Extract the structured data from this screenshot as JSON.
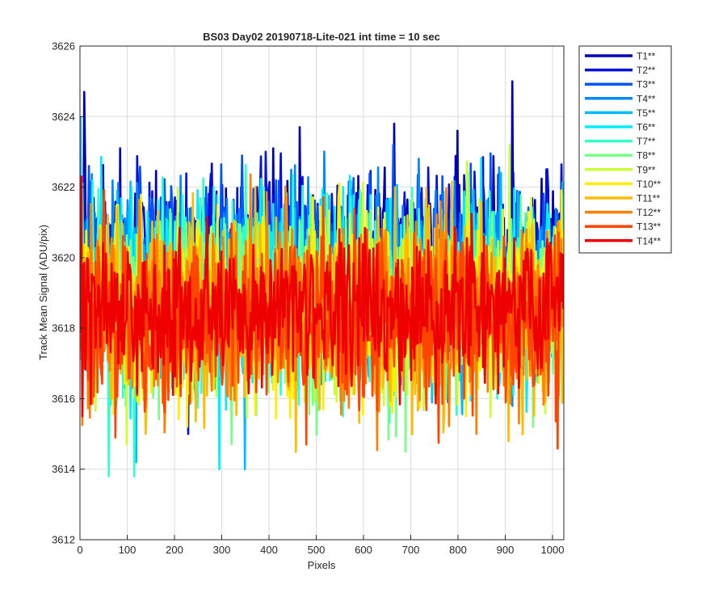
{
  "chart_data": {
    "type": "line",
    "title": "BS03 Day02 20190718-Lite-021 int time = 10 sec",
    "xlabel": "Pixels",
    "ylabel": "Track Mean Signal (ADU/pix)",
    "xlim": [
      0,
      1024
    ],
    "ylim": [
      3612,
      3626
    ],
    "x_ticks": [
      0,
      100,
      200,
      300,
      400,
      500,
      600,
      700,
      800,
      900,
      1000
    ],
    "y_ticks": [
      3612,
      3614,
      3616,
      3618,
      3620,
      3622,
      3624,
      3626
    ],
    "grid": true,
    "legend_position": "outside-top-right",
    "series": [
      {
        "name": "T1**",
        "color": "#0000b3",
        "mean": 3620.0,
        "spread": 1.4,
        "peaks": [
          [
            10,
            3624.7
          ],
          [
            85,
            3623.1
          ],
          [
            410,
            3623.1
          ],
          [
            465,
            3623.7
          ],
          [
            665,
            3623.8
          ],
          [
            800,
            3623.6
          ],
          [
            915,
            3625.0
          ]
        ]
      },
      {
        "name": "T2**",
        "color": "#0011dd",
        "mean": 3619.8,
        "spread": 1.5,
        "peaks": [
          [
            230,
            3615.0
          ],
          [
            780,
            3615.9
          ]
        ]
      },
      {
        "name": "T3**",
        "color": "#0055ff",
        "mean": 3619.6,
        "spread": 1.5,
        "peaks": [
          [
            20,
            3622.6
          ]
        ]
      },
      {
        "name": "T4**",
        "color": "#0088ff",
        "mean": 3619.4,
        "spread": 1.5,
        "peaks": [
          [
            580,
            3621.8
          ]
        ]
      },
      {
        "name": "T5**",
        "color": "#00bbff",
        "mean": 3619.2,
        "spread": 1.6,
        "peaks": [
          [
            120,
            3614.2
          ],
          [
            350,
            3614.0
          ],
          [
            2,
            3624.0
          ]
        ]
      },
      {
        "name": "T6**",
        "color": "#00eeff",
        "mean": 3619.0,
        "spread": 1.6,
        "peaks": [
          [
            295,
            3614.0
          ]
        ]
      },
      {
        "name": "T7**",
        "color": "#33ffcc",
        "mean": 3618.9,
        "spread": 1.6,
        "peaks": [
          [
            62,
            3613.8
          ],
          [
            115,
            3613.8
          ]
        ]
      },
      {
        "name": "T8**",
        "color": "#77ff88",
        "mean": 3618.8,
        "spread": 1.6,
        "peaks": [
          [
            690,
            3614.5
          ],
          [
            960,
            3615.2
          ]
        ]
      },
      {
        "name": "T9**",
        "color": "#ccff33",
        "mean": 3618.7,
        "spread": 1.6,
        "peaks": [
          [
            910,
            3623.2
          ],
          [
            100,
            3614.7
          ]
        ]
      },
      {
        "name": "T10**",
        "color": "#ffee00",
        "mean": 3618.6,
        "spread": 1.6,
        "peaks": [
          [
            550,
            3622.1
          ]
        ]
      },
      {
        "name": "T11**",
        "color": "#ffbb00",
        "mean": 3618.5,
        "spread": 1.6,
        "peaks": [
          [
            140,
            3615.0
          ]
        ]
      },
      {
        "name": "T12**",
        "color": "#ff7f00",
        "mean": 3618.4,
        "spread": 1.6,
        "peaks": [
          [
            840,
            3615.0
          ],
          [
            930,
            3615.3
          ]
        ]
      },
      {
        "name": "T13**",
        "color": "#ff4400",
        "mean": 3618.3,
        "spread": 1.5,
        "peaks": [
          [
            75,
            3614.9
          ],
          [
            480,
            3614.7
          ]
        ]
      },
      {
        "name": "T14**",
        "color": "#ee0000",
        "mean": 3618.6,
        "spread": 1.3,
        "peaks": [
          [
            3,
            3622.3
          ],
          [
            6,
            3615.5
          ]
        ]
      }
    ]
  }
}
